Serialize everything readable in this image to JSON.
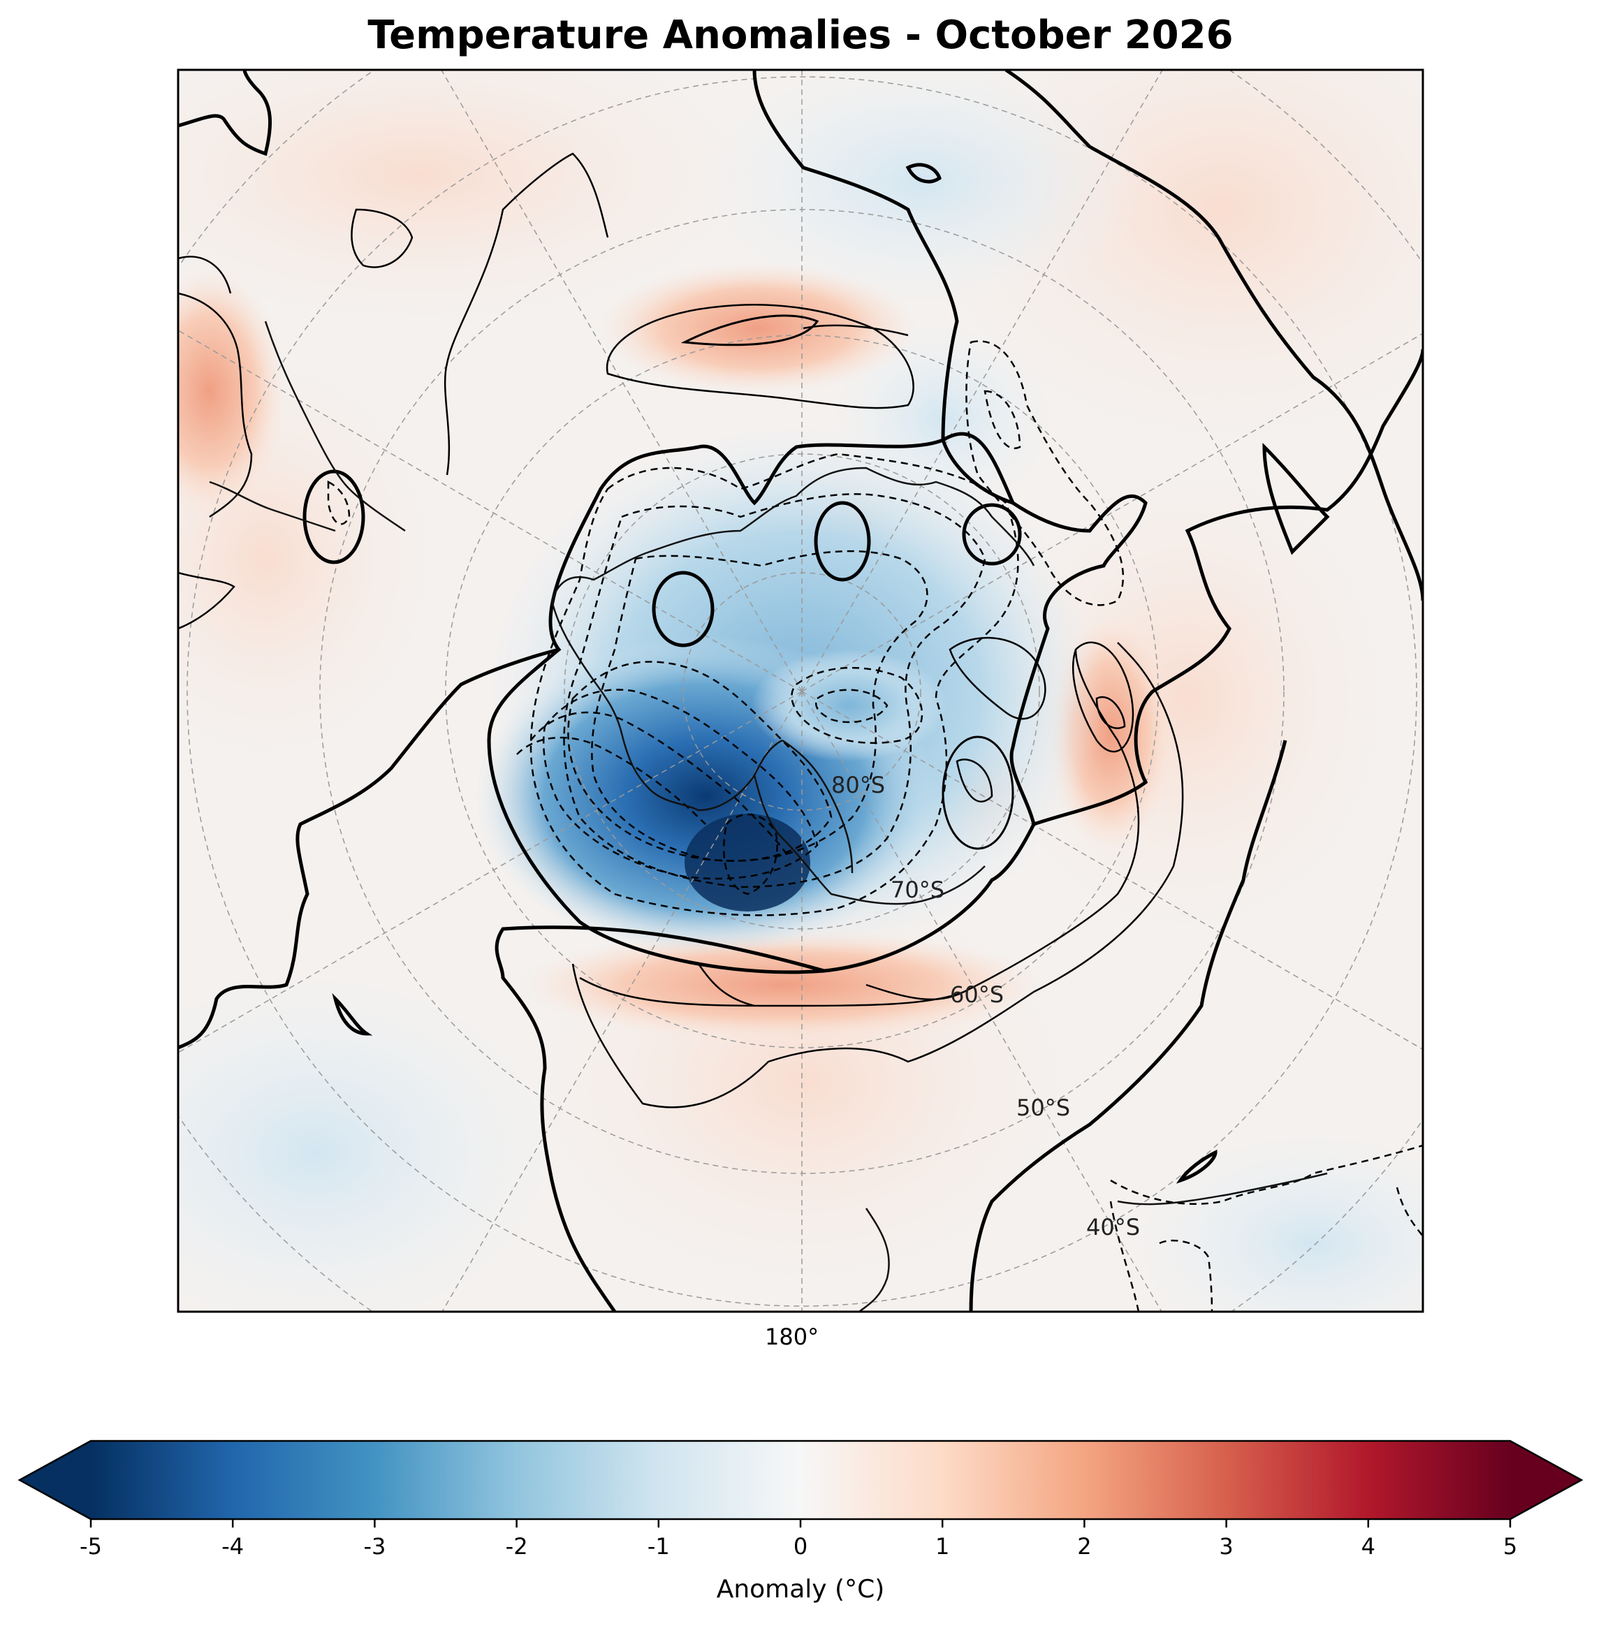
{
  "title": "Temperature Anomalies - October 2026",
  "map": {
    "projection": "South Polar Stereographic",
    "longitude_label": "180°",
    "latitude_labels": [
      "80°S",
      "70°S",
      "60°S",
      "50°S",
      "40°S"
    ],
    "gridlines": true,
    "contour_interval_c": 0.5,
    "negative_contours": "dashed",
    "zero_contour": "thick solid",
    "features": [
      {
        "name": "strong cold anomaly over West Antarctica",
        "anomaly_c": -5.0
      },
      {
        "name": "cold anomaly over East Antarctica",
        "anomaly_c": -3.0
      },
      {
        "name": "warm ring over Southern Ocean near 60°S",
        "anomaly_c": 1.5
      },
      {
        "name": "warm anomaly near 80°S (upper)",
        "anomaly_c": 1.5
      },
      {
        "name": "warm patch east of Antarctica",
        "anomaly_c": 2.0
      },
      {
        "name": "cool anomaly over Australia region",
        "anomaly_c": -1.0
      }
    ]
  },
  "colorbar": {
    "colormap": "RdBu_r",
    "min": -5,
    "max": 5,
    "extend": "both",
    "ticks": [
      "-5",
      "-4",
      "-3",
      "-2",
      "-1",
      "0",
      "1",
      "2",
      "3",
      "4",
      "5"
    ],
    "label": "Anomaly (°C)",
    "colors": [
      "#053061",
      "#2166ac",
      "#4393c3",
      "#92c5de",
      "#d1e5f0",
      "#f7f7f7",
      "#fddbc7",
      "#f4a582",
      "#d6604d",
      "#b2182b",
      "#67001f"
    ]
  }
}
